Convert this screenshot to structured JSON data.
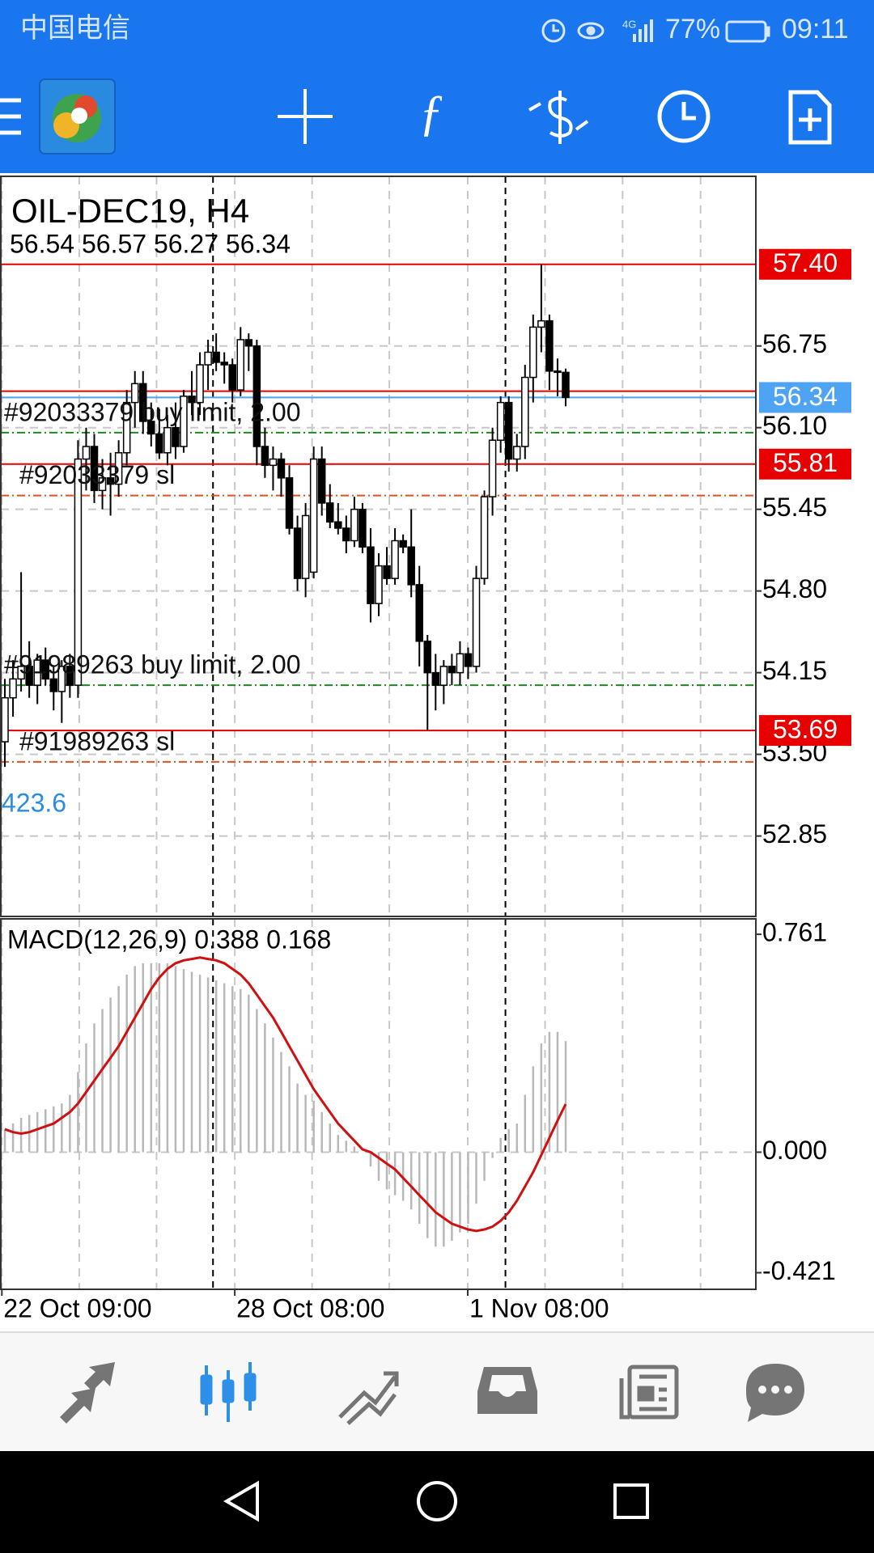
{
  "status_bar": {
    "carrier": "中国电信",
    "network": "4G",
    "battery": "77%",
    "time": "09:11"
  },
  "chart_data": {
    "type": "candlestick",
    "title": "OIL-DEC19, H4",
    "ohlc_label": "56.54 56.57 56.27 56.34",
    "up_color": "#ffffff",
    "down_color": "#000000",
    "xlim": [
      -0.5,
      92.4
    ],
    "xticks": [
      {
        "value": -0.37,
        "label": "22 Oct 09:00"
      },
      {
        "value": 28.29,
        "label": "28 Oct 08:00"
      },
      {
        "value": 56.95,
        "label": "1 Nov 08:00"
      }
    ],
    "xgrid": [
      9.15,
      18.66,
      37.8,
      47.3,
      66.46,
      76.0,
      85.6
    ],
    "separators": [
      25.61,
      61.59
    ],
    "ylim": [
      52.21,
      58.1
    ],
    "yticks": [
      56.75,
      {
        "value": 56.1,
        "label": "56.10"
      },
      55.45,
      {
        "value": 54.8,
        "label": "54.80"
      },
      54.15,
      {
        "value": 53.5,
        "label": "53.50"
      },
      52.85
    ],
    "grid": true,
    "candles": [
      {
        "o": 53.6,
        "h": 54.1,
        "l": 53.4,
        "c": 53.95
      },
      {
        "o": 53.95,
        "h": 54.25,
        "l": 53.8,
        "c": 54.1
      },
      {
        "o": 54.1,
        "h": 54.95,
        "l": 54.0,
        "c": 54.2
      },
      {
        "o": 54.2,
        "h": 54.4,
        "l": 53.95,
        "c": 54.05
      },
      {
        "o": 54.05,
        "h": 54.3,
        "l": 53.9,
        "c": 54.25
      },
      {
        "o": 54.25,
        "h": 54.35,
        "l": 54.05,
        "c": 54.1
      },
      {
        "o": 54.1,
        "h": 54.2,
        "l": 53.85,
        "c": 54.0
      },
      {
        "o": 54.0,
        "h": 54.25,
        "l": 53.75,
        "c": 54.2
      },
      {
        "o": 54.2,
        "h": 54.3,
        "l": 53.95,
        "c": 54.05
      },
      {
        "o": 54.05,
        "h": 56.0,
        "l": 53.95,
        "c": 55.85
      },
      {
        "o": 55.85,
        "h": 56.1,
        "l": 55.6,
        "c": 55.95
      },
      {
        "o": 55.95,
        "h": 56.05,
        "l": 55.5,
        "c": 55.6
      },
      {
        "o": 55.6,
        "h": 55.85,
        "l": 55.45,
        "c": 55.7
      },
      {
        "o": 55.7,
        "h": 55.9,
        "l": 55.4,
        "c": 55.65
      },
      {
        "o": 55.65,
        "h": 56.0,
        "l": 55.55,
        "c": 55.9
      },
      {
        "o": 55.9,
        "h": 56.4,
        "l": 55.8,
        "c": 56.3
      },
      {
        "o": 56.3,
        "h": 56.55,
        "l": 56.1,
        "c": 56.45
      },
      {
        "o": 56.45,
        "h": 56.55,
        "l": 56.05,
        "c": 56.15
      },
      {
        "o": 56.15,
        "h": 56.3,
        "l": 55.95,
        "c": 56.05
      },
      {
        "o": 56.05,
        "h": 56.25,
        "l": 55.85,
        "c": 55.9
      },
      {
        "o": 55.9,
        "h": 56.2,
        "l": 55.8,
        "c": 56.1
      },
      {
        "o": 56.1,
        "h": 56.3,
        "l": 55.85,
        "c": 55.95
      },
      {
        "o": 55.95,
        "h": 56.4,
        "l": 55.9,
        "c": 56.35
      },
      {
        "o": 56.35,
        "h": 56.55,
        "l": 56.2,
        "c": 56.3
      },
      {
        "o": 56.3,
        "h": 56.7,
        "l": 56.2,
        "c": 56.6
      },
      {
        "o": 56.6,
        "h": 56.8,
        "l": 56.4,
        "c": 56.7
      },
      {
        "o": 56.7,
        "h": 56.85,
        "l": 56.55,
        "c": 56.62
      },
      {
        "o": 56.62,
        "h": 56.7,
        "l": 56.45,
        "c": 56.6
      },
      {
        "o": 56.6,
        "h": 56.65,
        "l": 56.3,
        "c": 56.4
      },
      {
        "o": 56.4,
        "h": 56.9,
        "l": 56.35,
        "c": 56.8
      },
      {
        "o": 56.8,
        "h": 56.85,
        "l": 56.55,
        "c": 56.75
      },
      {
        "o": 56.75,
        "h": 56.8,
        "l": 55.8,
        "c": 55.95
      },
      {
        "o": 55.95,
        "h": 56.1,
        "l": 55.7,
        "c": 55.8
      },
      {
        "o": 55.8,
        "h": 55.95,
        "l": 55.6,
        "c": 55.85
      },
      {
        "o": 55.85,
        "h": 55.9,
        "l": 55.55,
        "c": 55.7
      },
      {
        "o": 55.7,
        "h": 55.8,
        "l": 55.25,
        "c": 55.3
      },
      {
        "o": 55.3,
        "h": 55.4,
        "l": 54.8,
        "c": 54.9
      },
      {
        "o": 54.9,
        "h": 55.5,
        "l": 54.75,
        "c": 55.4
      },
      {
        "o": 54.95,
        "h": 55.95,
        "l": 54.9,
        "c": 55.85
      },
      {
        "o": 55.85,
        "h": 55.95,
        "l": 55.4,
        "c": 55.5
      },
      {
        "o": 55.5,
        "h": 55.65,
        "l": 55.3,
        "c": 55.35
      },
      {
        "o": 55.35,
        "h": 55.5,
        "l": 55.25,
        "c": 55.3
      },
      {
        "o": 55.3,
        "h": 55.4,
        "l": 55.1,
        "c": 55.2
      },
      {
        "o": 55.2,
        "h": 55.55,
        "l": 55.15,
        "c": 55.45
      },
      {
        "o": 55.45,
        "h": 55.5,
        "l": 55.1,
        "c": 55.15
      },
      {
        "o": 55.15,
        "h": 55.3,
        "l": 54.55,
        "c": 54.7
      },
      {
        "o": 54.7,
        "h": 55.1,
        "l": 54.6,
        "c": 55.0
      },
      {
        "o": 55.0,
        "h": 55.15,
        "l": 54.85,
        "c": 54.9
      },
      {
        "o": 54.9,
        "h": 55.3,
        "l": 54.85,
        "c": 55.2
      },
      {
        "o": 55.2,
        "h": 55.25,
        "l": 55.1,
        "c": 55.15
      },
      {
        "o": 55.15,
        "h": 55.45,
        "l": 54.75,
        "c": 54.85
      },
      {
        "o": 54.85,
        "h": 55.0,
        "l": 54.2,
        "c": 54.4
      },
      {
        "o": 54.4,
        "h": 54.45,
        "l": 53.69,
        "c": 54.15
      },
      {
        "o": 54.15,
        "h": 54.3,
        "l": 53.85,
        "c": 54.05
      },
      {
        "o": 54.05,
        "h": 54.25,
        "l": 53.9,
        "c": 54.2
      },
      {
        "o": 54.2,
        "h": 54.3,
        "l": 54.05,
        "c": 54.15
      },
      {
        "o": 54.15,
        "h": 54.4,
        "l": 54.05,
        "c": 54.3
      },
      {
        "o": 54.3,
        "h": 54.35,
        "l": 54.1,
        "c": 54.2
      },
      {
        "o": 54.2,
        "h": 55.0,
        "l": 54.15,
        "c": 54.9
      },
      {
        "o": 54.9,
        "h": 55.6,
        "l": 54.85,
        "c": 55.55
      },
      {
        "o": 55.55,
        "h": 56.1,
        "l": 55.4,
        "c": 56.0
      },
      {
        "o": 56.0,
        "h": 56.35,
        "l": 55.9,
        "c": 56.3
      },
      {
        "o": 56.3,
        "h": 56.35,
        "l": 55.75,
        "c": 55.85
      },
      {
        "o": 55.85,
        "h": 56.05,
        "l": 55.75,
        "c": 55.95
      },
      {
        "o": 55.95,
        "h": 56.6,
        "l": 55.85,
        "c": 56.5
      },
      {
        "o": 56.5,
        "h": 57.0,
        "l": 56.3,
        "c": 56.9
      },
      {
        "o": 56.9,
        "h": 57.4,
        "l": 56.7,
        "c": 56.95
      },
      {
        "o": 56.95,
        "h": 57.0,
        "l": 56.4,
        "c": 56.55
      },
      {
        "o": 56.55,
        "h": 56.65,
        "l": 56.35,
        "c": 56.54
      },
      {
        "o": 56.54,
        "h": 56.57,
        "l": 56.27,
        "c": 56.34
      }
    ],
    "price_lines": [
      {
        "value": 57.4,
        "label": "57.40",
        "color": "#e80000",
        "tag": true
      },
      {
        "value": 56.39,
        "color": "#e80000",
        "tag": false
      },
      {
        "value": 56.34,
        "color": "#4ea3f2",
        "tag": true
      },
      {
        "value": 55.81,
        "color": "#e80000",
        "tag": true
      },
      {
        "value": 53.69,
        "color": "#e80000",
        "tag": true
      }
    ],
    "orders": [
      {
        "label": "#92033379 buy limit, 2.00",
        "value": 56.06,
        "color": "#1a8a1a"
      },
      {
        "label": "#92033379 sl",
        "value": 55.56,
        "color": "#e05020"
      },
      {
        "label": "#91989263 buy limit, 2.00",
        "value": 54.05,
        "color": "#1a8a1a"
      },
      {
        "label": "#91989263 sl",
        "value": 53.44,
        "color": "#e05020"
      }
    ],
    "annotation": "423.6",
    "macd": {
      "type": "macd",
      "title": "MACD(12,26,9) 0.388 0.168",
      "ylim": [
        -0.479,
        0.815
      ],
      "yticks": [
        0.761,
        {
          "value": 0,
          "label": "0.000"
        },
        -0.421
      ],
      "histogram": {
        "color": "#b8b8b8",
        "values": [
          0.08,
          0.1,
          0.12,
          0.13,
          0.14,
          0.15,
          0.16,
          0.17,
          0.2,
          0.28,
          0.38,
          0.45,
          0.5,
          0.54,
          0.58,
          0.62,
          0.65,
          0.66,
          0.66,
          0.66,
          0.66,
          0.65,
          0.64,
          0.63,
          0.62,
          0.61,
          0.6,
          0.59,
          0.58,
          0.57,
          0.55,
          0.5,
          0.45,
          0.4,
          0.35,
          0.3,
          0.24,
          0.2,
          0.18,
          0.14,
          0.1,
          0.06,
          0.04,
          0.02,
          0.0,
          -0.05,
          -0.1,
          -0.13,
          -0.15,
          -0.17,
          -0.2,
          -0.25,
          -0.3,
          -0.33,
          -0.33,
          -0.31,
          -0.28,
          -0.25,
          -0.18,
          -0.1,
          -0.02,
          0.05,
          0.08,
          0.1,
          0.2,
          0.3,
          0.38,
          0.42,
          0.42,
          0.388
        ]
      },
      "signal": {
        "color": "#d01010",
        "values": [
          0.08,
          0.07,
          0.065,
          0.07,
          0.08,
          0.09,
          0.1,
          0.12,
          0.14,
          0.17,
          0.21,
          0.25,
          0.29,
          0.33,
          0.37,
          0.42,
          0.47,
          0.52,
          0.57,
          0.61,
          0.64,
          0.66,
          0.67,
          0.675,
          0.68,
          0.675,
          0.67,
          0.66,
          0.64,
          0.62,
          0.59,
          0.55,
          0.51,
          0.47,
          0.42,
          0.37,
          0.32,
          0.27,
          0.22,
          0.18,
          0.14,
          0.1,
          0.07,
          0.04,
          0.01,
          0.0,
          -0.02,
          -0.04,
          -0.06,
          -0.09,
          -0.12,
          -0.15,
          -0.18,
          -0.21,
          -0.23,
          -0.25,
          -0.26,
          -0.27,
          -0.275,
          -0.27,
          -0.26,
          -0.24,
          -0.21,
          -0.17,
          -0.12,
          -0.07,
          -0.01,
          0.05,
          0.11,
          0.168
        ]
      }
    }
  }
}
